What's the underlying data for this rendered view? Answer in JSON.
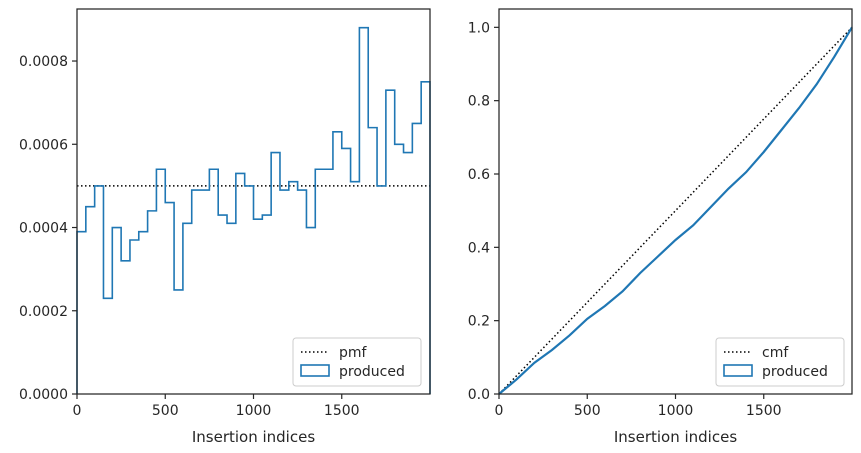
{
  "colors": {
    "produced": "#1f77b4",
    "reference": "#000000",
    "axes": "#262626"
  },
  "chart_data": [
    {
      "type": "histogram-step",
      "xlabel": "Insertion indices",
      "ylabel": "",
      "xlim": [
        0,
        2000
      ],
      "ylim": [
        0,
        0.000925
      ],
      "xticks": [
        "0",
        "500",
        "1000",
        "1500"
      ],
      "xtick_values": [
        0,
        500,
        1000,
        1500
      ],
      "yticks": [
        "0.0000",
        "0.0002",
        "0.0004",
        "0.0006",
        "0.0008"
      ],
      "ytick_values": [
        0,
        0.0002,
        0.0004,
        0.0006,
        0.0008
      ],
      "legend": {
        "placement": "lower right",
        "entries": [
          "pmf",
          "produced"
        ]
      },
      "reference": {
        "name": "pmf",
        "style": "dotted",
        "value": 0.0005
      },
      "series": [
        {
          "name": "produced",
          "bin_edges": [
            0,
            50,
            100,
            150,
            200,
            250,
            300,
            350,
            400,
            450,
            500,
            550,
            600,
            650,
            700,
            750,
            800,
            850,
            900,
            950,
            1000,
            1050,
            1100,
            1150,
            1200,
            1250,
            1300,
            1350,
            1400,
            1450,
            1500,
            1550,
            1600,
            1650,
            1700,
            1750,
            1800,
            1850,
            1900,
            1950,
            2000
          ],
          "values": [
            0.00039,
            0.00045,
            0.0005,
            0.00023,
            0.0004,
            0.00032,
            0.00037,
            0.00039,
            0.00044,
            0.00054,
            0.00046,
            0.00025,
            0.00041,
            0.00049,
            0.00049,
            0.00054,
            0.00043,
            0.00041,
            0.00053,
            0.0005,
            0.00042,
            0.00043,
            0.00058,
            0.00049,
            0.00051,
            0.00049,
            0.0004,
            0.00054,
            0.00054,
            0.00063,
            0.00059,
            0.00051,
            0.00088,
            0.00064,
            0.0005,
            0.00073,
            0.0006,
            0.00058,
            0.00065,
            0.00075
          ]
        }
      ]
    },
    {
      "type": "line",
      "xlabel": "Insertion indices",
      "ylabel": "",
      "xlim": [
        0,
        2000
      ],
      "ylim": [
        0,
        1.05
      ],
      "xticks": [
        "0",
        "500",
        "1000",
        "1500"
      ],
      "xtick_values": [
        0,
        500,
        1000,
        1500
      ],
      "yticks": [
        "0.0",
        "0.2",
        "0.4",
        "0.6",
        "0.8",
        "1.0"
      ],
      "ytick_values": [
        0,
        0.2,
        0.4,
        0.6,
        0.8,
        1.0
      ],
      "legend": {
        "placement": "lower right",
        "entries": [
          "cmf",
          "produced"
        ]
      },
      "reference": {
        "name": "cmf",
        "style": "dotted",
        "points": [
          [
            0,
            0
          ],
          [
            2000,
            1.0
          ]
        ]
      },
      "series": [
        {
          "name": "produced",
          "x": [
            0,
            100,
            200,
            300,
            400,
            500,
            600,
            700,
            800,
            900,
            1000,
            1100,
            1200,
            1300,
            1400,
            1500,
            1600,
            1700,
            1800,
            1900,
            2000
          ],
          "y": [
            0,
            0.04,
            0.085,
            0.12,
            0.16,
            0.205,
            0.24,
            0.28,
            0.33,
            0.375,
            0.42,
            0.46,
            0.51,
            0.56,
            0.605,
            0.66,
            0.72,
            0.78,
            0.845,
            0.92,
            1.0
          ]
        }
      ]
    }
  ]
}
